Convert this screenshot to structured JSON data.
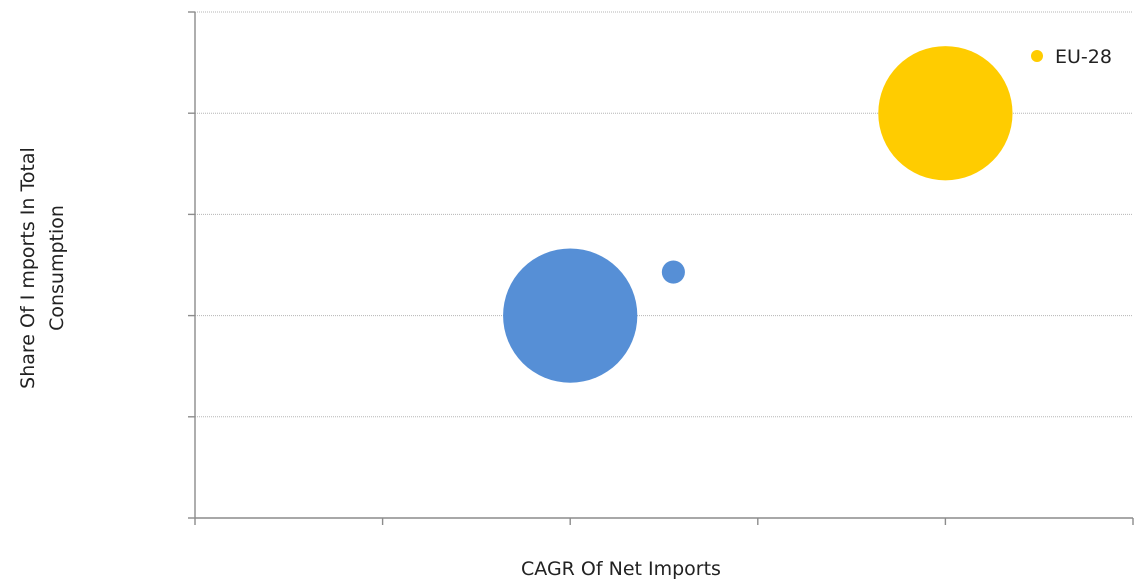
{
  "chart_data": {
    "type": "scatter",
    "title": "",
    "xlabel": "CAGR Of Net Imports",
    "ylabel_lines": [
      "Share Of I mports In Total",
      "Consumption"
    ],
    "xlim": [
      0,
      5
    ],
    "ylim": [
      0,
      5
    ],
    "grid": "horizontal dotted",
    "tick_labels_shown": false,
    "legend_position": "top-right",
    "series": [
      {
        "name": "",
        "color": "#568fd6",
        "points": [
          {
            "x": 2.0,
            "y": 2.0,
            "size": 4.4
          },
          {
            "x": 2.55,
            "y": 2.43,
            "size": 0.13
          }
        ]
      },
      {
        "name": "EU-28",
        "color": "#ffcc00",
        "points": [
          {
            "x": 4.0,
            "y": 4.0,
            "size": 4.4
          }
        ]
      }
    ]
  }
}
